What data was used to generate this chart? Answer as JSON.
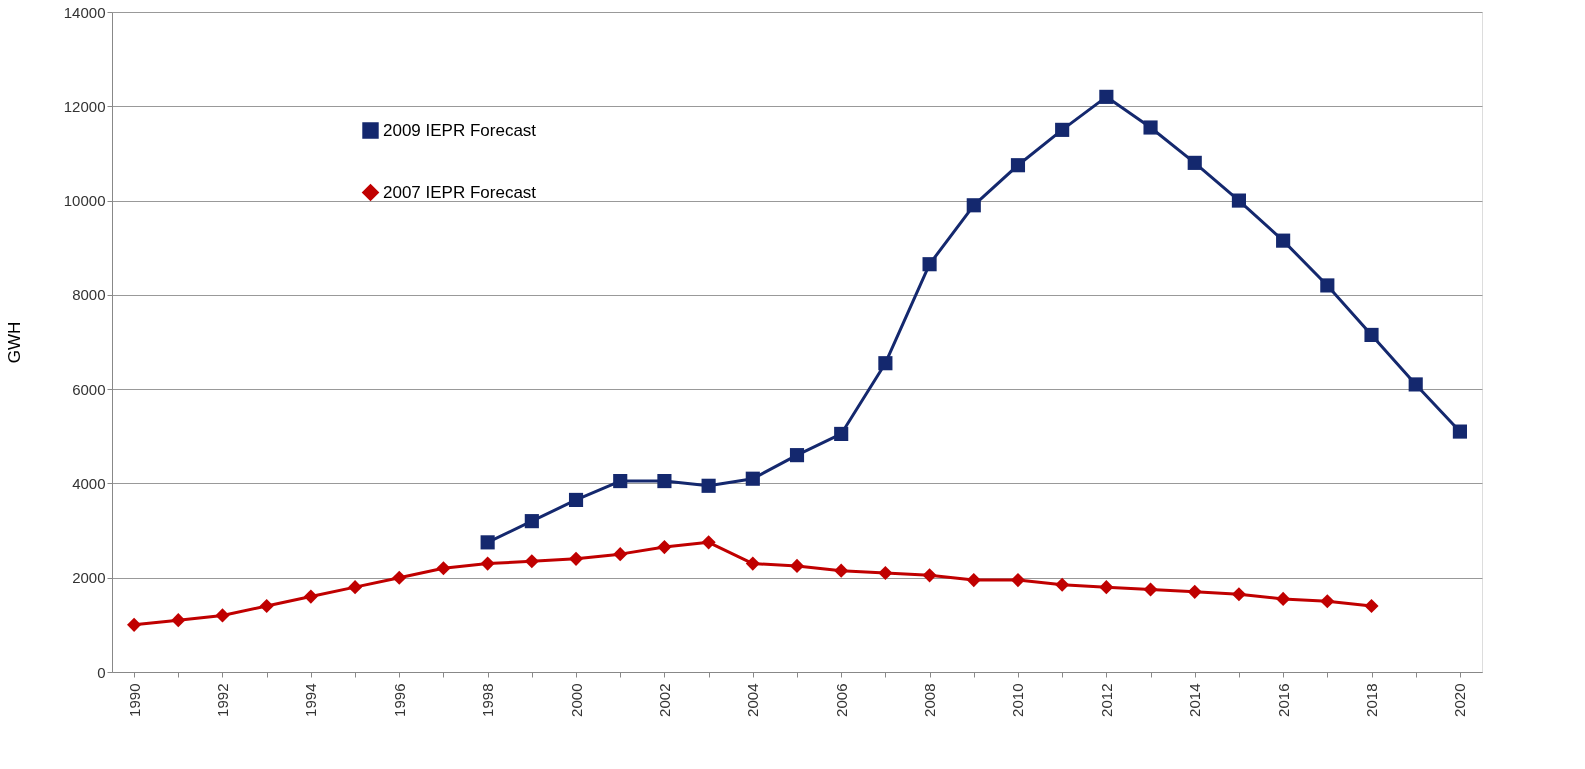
{
  "chart_data": {
    "type": "line",
    "ylabel": "GWH",
    "categories": [
      "1990",
      null,
      "1992",
      null,
      "1994",
      null,
      "1996",
      null,
      "1998",
      null,
      "2000",
      null,
      "2002",
      null,
      "2004",
      null,
      "2006",
      null,
      "2008",
      null,
      "2010",
      null,
      "2012",
      null,
      "2014",
      null,
      "2016",
      null,
      "2018",
      null,
      "2020"
    ],
    "series": [
      {
        "name": "2009 IEPR Forecast",
        "color": "#14286e",
        "marker": "square",
        "values": [
          null,
          null,
          null,
          null,
          null,
          null,
          null,
          null,
          2750,
          3200,
          3650,
          4050,
          4050,
          3950,
          4100,
          4600,
          5050,
          6550,
          8650,
          9900,
          10750,
          11500,
          12200,
          11550,
          10800,
          10000,
          9150,
          8200,
          7150,
          6100,
          5100
        ]
      },
      {
        "name": "2007 IEPR Forecast",
        "color": "#c00000",
        "marker": "diamond",
        "values": [
          1000,
          1100,
          1200,
          1400,
          1600,
          1800,
          2000,
          2200,
          2300,
          2350,
          2400,
          2500,
          2650,
          2750,
          2300,
          2250,
          2150,
          2100,
          2050,
          1950,
          1950,
          1850,
          1800,
          1750,
          1700,
          1650,
          1550,
          1500,
          1400,
          null,
          null
        ]
      }
    ],
    "ylim": [
      0,
      14000
    ],
    "yticks": [
      0,
      2000,
      4000,
      6000,
      8000,
      10000,
      12000,
      14000
    ],
    "grid": "y",
    "legend": "top left",
    "line_style": "solid"
  }
}
